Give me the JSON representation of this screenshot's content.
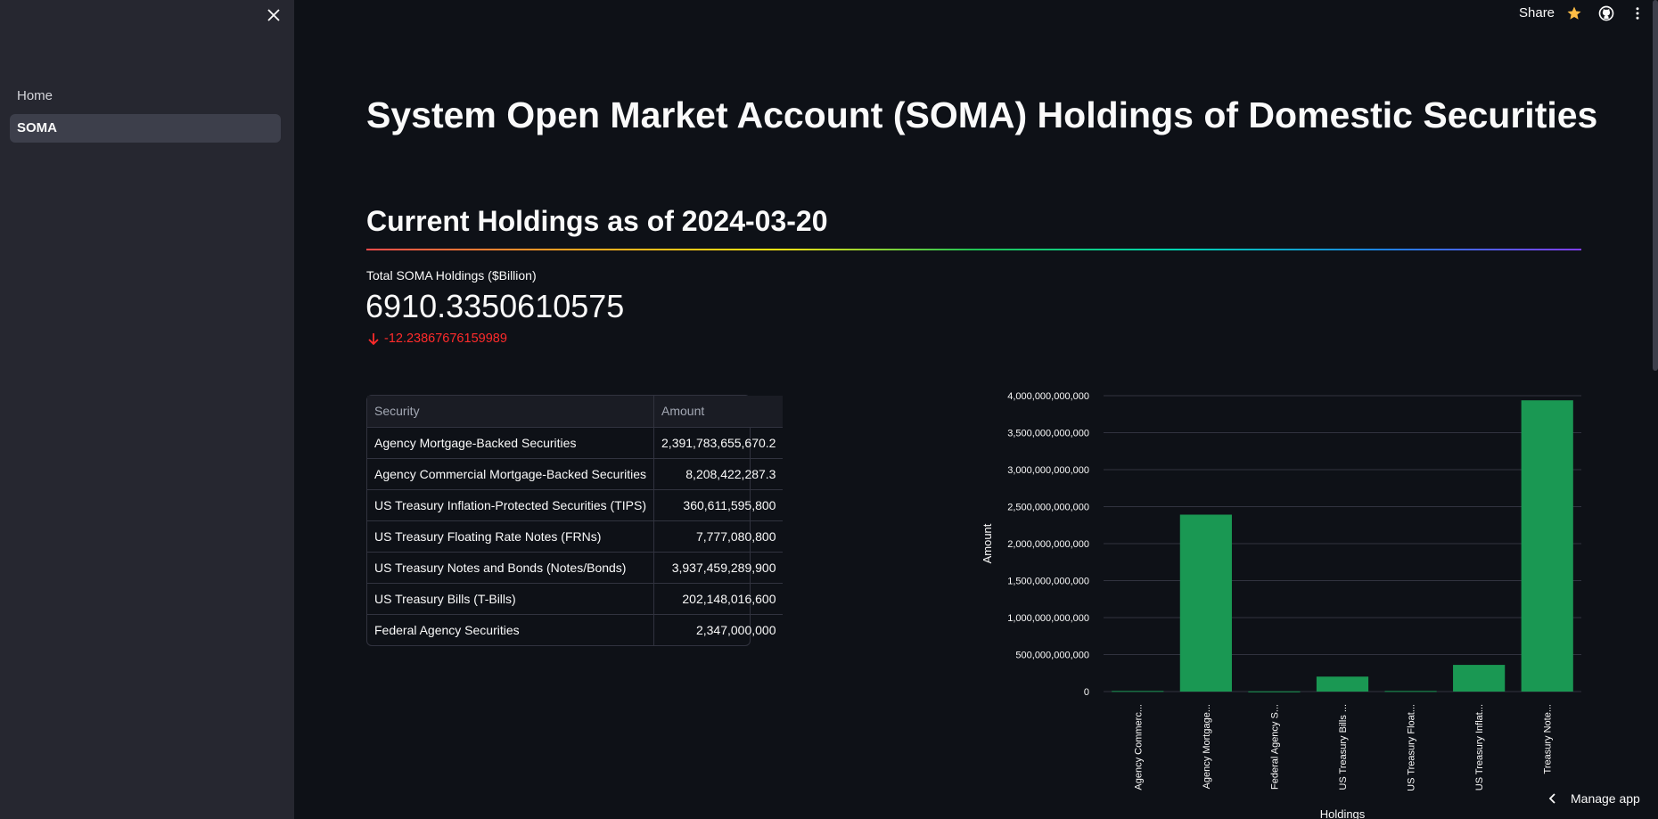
{
  "sidebar": {
    "nav": [
      {
        "label": "Home",
        "active": false
      },
      {
        "label": "SOMA",
        "active": true
      }
    ]
  },
  "toolbar": {
    "share_label": "Share",
    "icons": [
      "star-icon",
      "github-icon",
      "kebab-menu-icon"
    ],
    "star_color": "#ffbd45"
  },
  "main": {
    "title": "System Open Market Account (SOMA) Holdings of Domestic Securities",
    "subheader": "Current Holdings as of 2024-03-20",
    "metric": {
      "label": "Total SOMA Holdings ($Billion)",
      "value": "6910.3350610575",
      "delta": "-12.23867676159989"
    },
    "table": {
      "columns": [
        "Security",
        "Amount"
      ],
      "rows": [
        [
          "Agency Mortgage-Backed Securities",
          "2,391,783,655,670.2"
        ],
        [
          "Agency Commercial Mortgage-Backed Securities",
          "8,208,422,287.3"
        ],
        [
          "US Treasury Inflation-Protected Securities (TIPS)",
          "360,611,595,800"
        ],
        [
          "US Treasury Floating Rate Notes (FRNs)",
          "7,777,080,800"
        ],
        [
          "US Treasury Notes and Bonds (Notes/Bonds)",
          "3,937,459,289,900"
        ],
        [
          "US Treasury Bills (T-Bills)",
          "202,148,016,600"
        ],
        [
          "Federal Agency Securities",
          "2,347,000,000"
        ]
      ]
    }
  },
  "chart_data": {
    "type": "bar",
    "categories": [
      "Agency Commerc...",
      "Agency Mortgage...",
      "Federal Agency S...",
      "US Treasury Bills ...",
      "US Treasury Float...",
      "US Treasury Inflat...",
      "Treasury Note..."
    ],
    "values": [
      8208422287.3,
      2391783655670.2,
      2347000000,
      202148016600,
      7777080800,
      360611595800,
      3937459289900
    ],
    "xlabel": "Holdings",
    "ylabel": "Amount",
    "ylim": [
      0,
      4000000000000
    ],
    "yticks": [
      0,
      500000000000,
      1000000000000,
      1500000000000,
      2000000000000,
      2500000000000,
      3000000000000,
      3500000000000,
      4000000000000
    ],
    "ytick_labels": [
      "0",
      "500,000,000,000",
      "1,000,000,000,000",
      "1,500,000,000,000",
      "2,000,000,000,000",
      "2,500,000,000,000",
      "3,000,000,000,000",
      "3,500,000,000,000",
      "4,000,000,000,000"
    ],
    "bar_color": "#1a9853",
    "grid": true
  },
  "footer": {
    "manage_label": "Manage app"
  }
}
